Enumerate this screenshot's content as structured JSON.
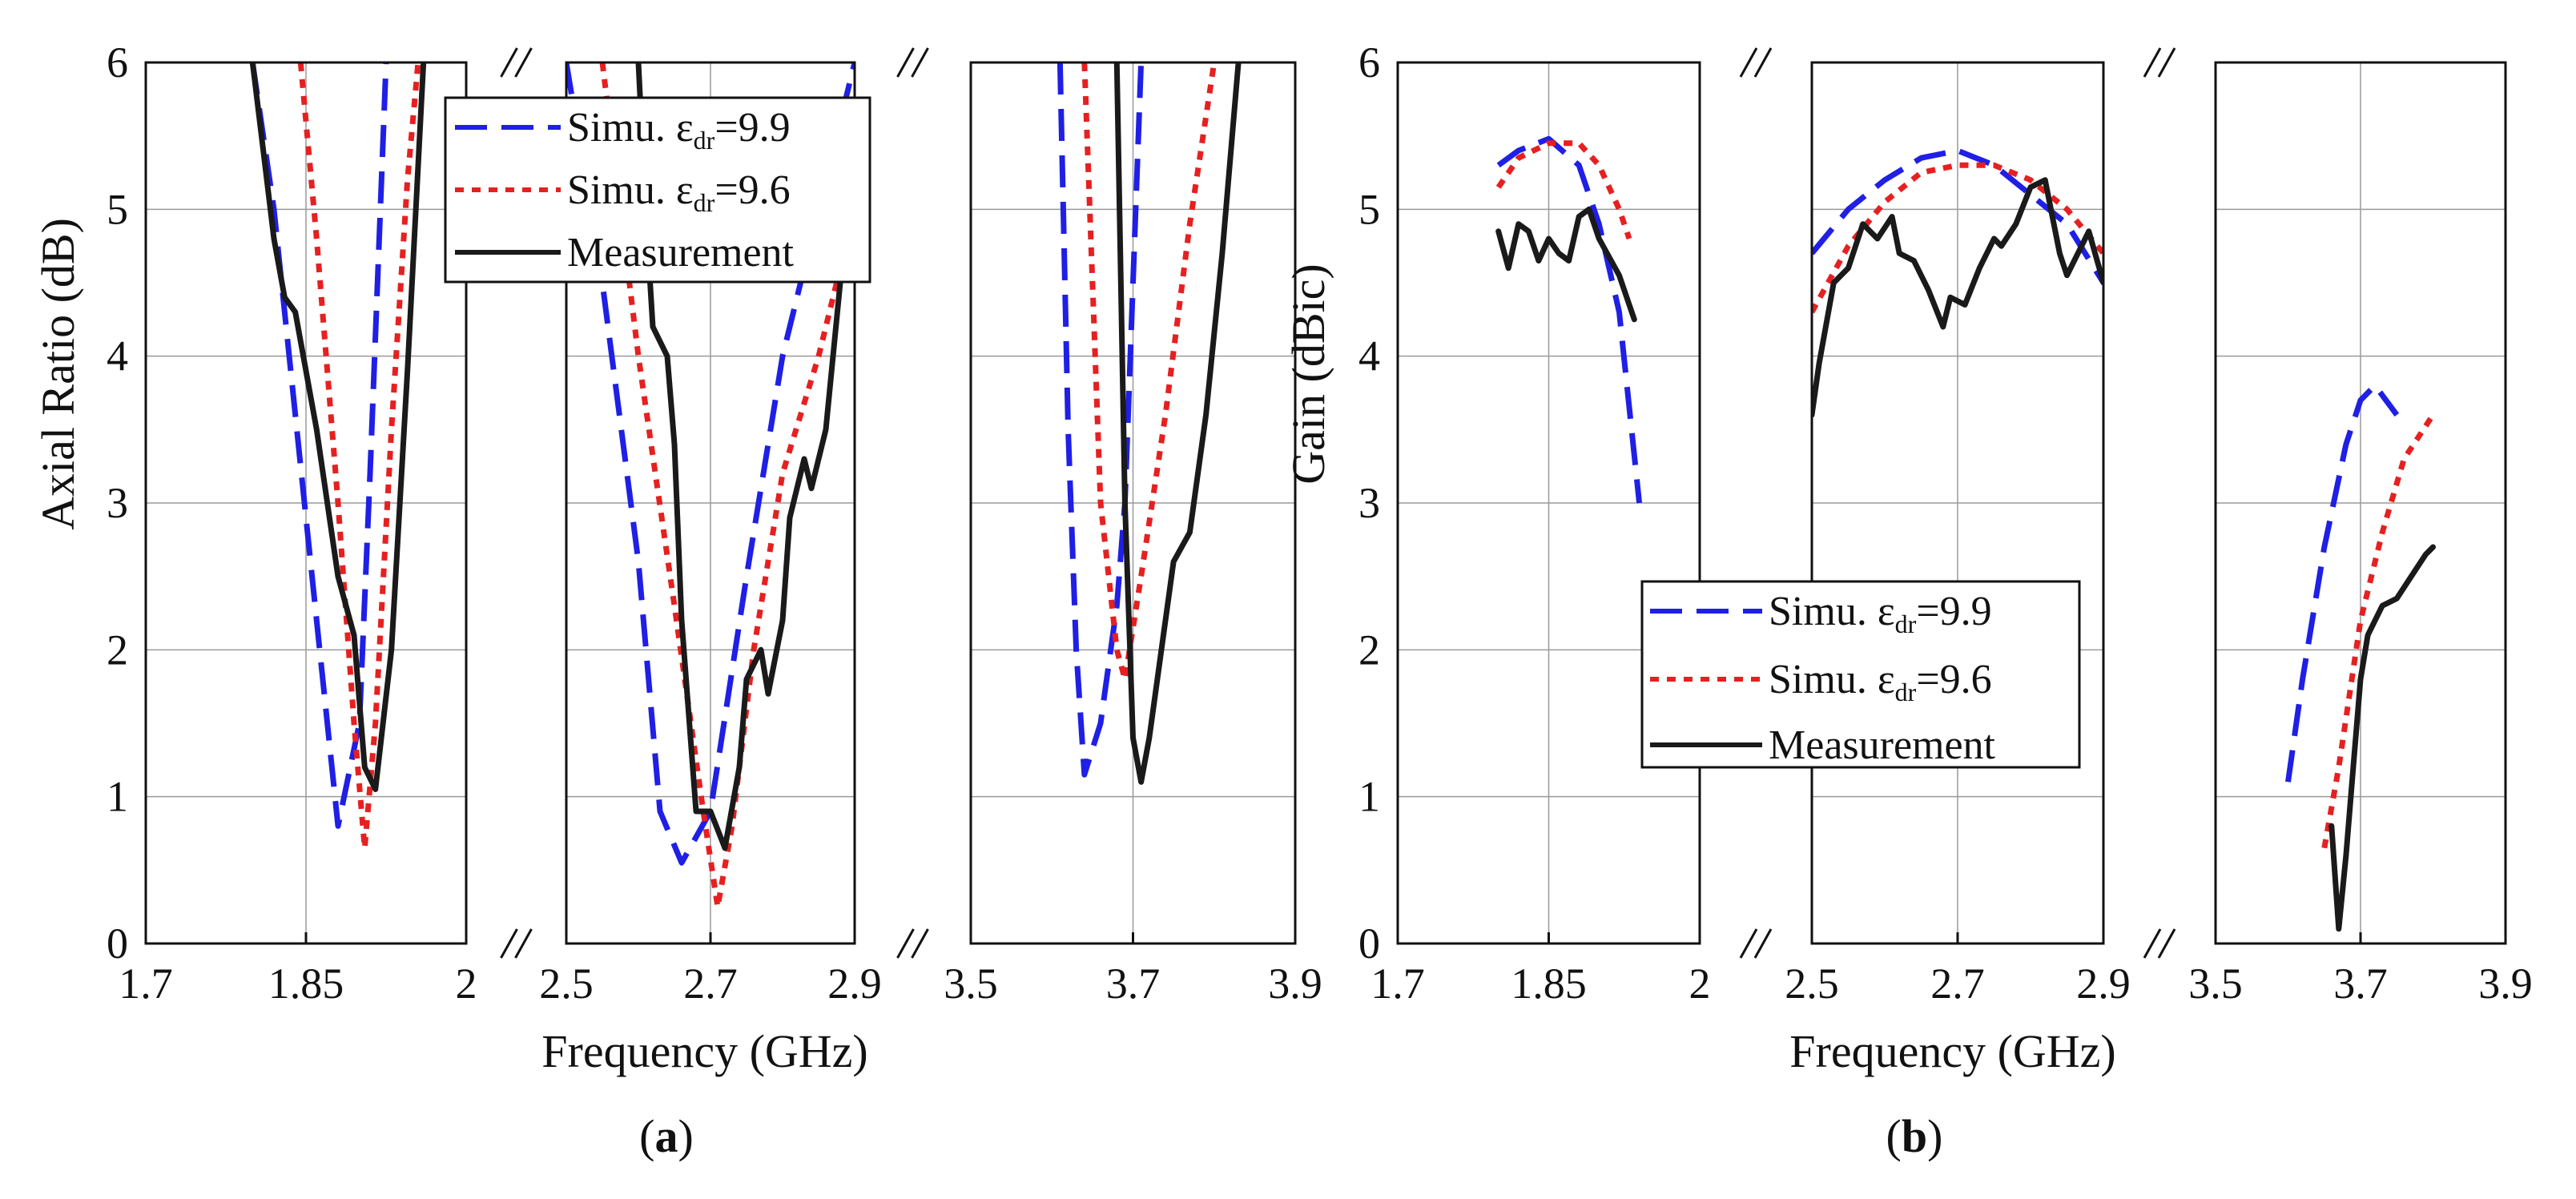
{
  "chart_data": [
    {
      "panel": "a",
      "type": "line",
      "caption": {
        "open": "(",
        "letter": "a",
        "close": ")"
      },
      "xlabel": "Frequency (GHz)",
      "ylabel": "Axial Ratio (dB)",
      "ylim": [
        0,
        6
      ],
      "yticks": [
        "0",
        "1",
        "2",
        "3",
        "4",
        "5",
        "6"
      ],
      "grid": true,
      "legend_position": "top-center",
      "segments": [
        {
          "xlim": [
            1.7,
            2.0
          ],
          "xticks": [
            1.7,
            1.85,
            2.0
          ],
          "xtick_labels": [
            "1.7",
            "1.85",
            "2"
          ]
        },
        {
          "xlim": [
            2.5,
            2.9
          ],
          "xticks": [
            2.5,
            2.7,
            2.9
          ],
          "xtick_labels": [
            "2.5",
            "2.7",
            "2.9"
          ]
        },
        {
          "xlim": [
            3.5,
            3.9
          ],
          "xticks": [
            3.5,
            3.7,
            3.9
          ],
          "xtick_labels": [
            "3.5",
            "3.7",
            "3.9"
          ]
        }
      ],
      "series": [
        {
          "name": "Simu.",
          "legend_prefix": "Simu. ε",
          "legend_sub": "dr",
          "legend_suffix": "=9.9",
          "color": "#1f1fe6",
          "style": "dashed",
          "segments": [
            [
              [
                1.8,
                6.0
              ],
              [
                1.82,
                5.0
              ],
              [
                1.84,
                3.6
              ],
              [
                1.86,
                2.2
              ],
              [
                1.88,
                0.8
              ],
              [
                1.9,
                1.5
              ],
              [
                1.91,
                3.2
              ],
              [
                1.925,
                6.0
              ]
            ],
            [
              [
                2.5,
                6.0
              ],
              [
                2.55,
                4.5
              ],
              [
                2.6,
                2.6
              ],
              [
                2.63,
                0.9
              ],
              [
                2.66,
                0.55
              ],
              [
                2.7,
                0.9
              ],
              [
                2.75,
                2.5
              ],
              [
                2.8,
                4.0
              ],
              [
                2.85,
                5.0
              ],
              [
                2.9,
                6.0
              ]
            ],
            [
              [
                3.61,
                6.0
              ],
              [
                3.62,
                3.5
              ],
              [
                3.63,
                2.0
              ],
              [
                3.64,
                1.15
              ],
              [
                3.66,
                1.5
              ],
              [
                3.68,
                2.3
              ],
              [
                3.69,
                3.0
              ],
              [
                3.71,
                6.0
              ]
            ]
          ]
        },
        {
          "name": "Simu.",
          "legend_prefix": "Simu. ε",
          "legend_sub": "dr",
          "legend_suffix": "=9.6",
          "color": "#e62020",
          "style": "dotted",
          "segments": [
            [
              [
                1.845,
                6.0
              ],
              [
                1.86,
                4.8
              ],
              [
                1.88,
                3.0
              ],
              [
                1.895,
                1.5
              ],
              [
                1.905,
                0.65
              ],
              [
                1.915,
                1.5
              ],
              [
                1.93,
                3.5
              ],
              [
                1.945,
                5.2
              ],
              [
                1.955,
                6.0
              ]
            ],
            [
              [
                2.55,
                6.0
              ],
              [
                2.6,
                4.0
              ],
              [
                2.65,
                2.3
              ],
              [
                2.69,
                0.9
              ],
              [
                2.71,
                0.25
              ],
              [
                2.73,
                0.8
              ],
              [
                2.76,
                2.0
              ],
              [
                2.8,
                3.2
              ],
              [
                2.85,
                4.0
              ],
              [
                2.9,
                5.0
              ]
            ],
            [
              [
                3.64,
                6.0
              ],
              [
                3.65,
                4.5
              ],
              [
                3.66,
                3.0
              ],
              [
                3.68,
                2.0
              ],
              [
                3.69,
                1.8
              ],
              [
                3.71,
                2.5
              ],
              [
                3.74,
                3.6
              ],
              [
                3.77,
                4.9
              ],
              [
                3.8,
                6.0
              ]
            ]
          ]
        },
        {
          "name": "Measurement",
          "legend_prefix": "Measurement",
          "legend_sub": "",
          "legend_suffix": "",
          "color": "#1a1a1a",
          "style": "solid",
          "segments": [
            [
              [
                1.8,
                6.0
              ],
              [
                1.81,
                5.4
              ],
              [
                1.82,
                4.8
              ],
              [
                1.83,
                4.4
              ],
              [
                1.84,
                4.3
              ],
              [
                1.86,
                3.5
              ],
              [
                1.88,
                2.5
              ],
              [
                1.895,
                2.1
              ],
              [
                1.905,
                1.2
              ],
              [
                1.915,
                1.05
              ],
              [
                1.93,
                2.0
              ],
              [
                1.945,
                3.9
              ],
              [
                1.96,
                6.0
              ]
            ],
            [
              [
                2.6,
                6.0
              ],
              [
                2.61,
                5.0
              ],
              [
                2.62,
                4.2
              ],
              [
                2.64,
                4.0
              ],
              [
                2.65,
                3.4
              ],
              [
                2.66,
                2.2
              ],
              [
                2.68,
                0.9
              ],
              [
                2.7,
                0.9
              ],
              [
                2.72,
                0.65
              ],
              [
                2.74,
                1.2
              ],
              [
                2.75,
                1.8
              ],
              [
                2.77,
                2.0
              ],
              [
                2.78,
                1.7
              ],
              [
                2.8,
                2.2
              ],
              [
                2.81,
                2.9
              ],
              [
                2.83,
                3.3
              ],
              [
                2.84,
                3.1
              ],
              [
                2.86,
                3.5
              ],
              [
                2.88,
                4.5
              ],
              [
                2.9,
                5.3
              ]
            ],
            [
              [
                3.68,
                6.0
              ],
              [
                3.69,
                3.0
              ],
              [
                3.7,
                1.4
              ],
              [
                3.71,
                1.1
              ],
              [
                3.72,
                1.4
              ],
              [
                3.73,
                1.8
              ],
              [
                3.75,
                2.6
              ],
              [
                3.77,
                2.8
              ],
              [
                3.79,
                3.6
              ],
              [
                3.81,
                4.7
              ],
              [
                3.83,
                6.0
              ]
            ]
          ]
        }
      ]
    },
    {
      "panel": "b",
      "type": "line",
      "caption": {
        "open": "(",
        "letter": "b",
        "close": ")"
      },
      "xlabel": "Frequency (GHz)",
      "ylabel": "Gain (dBic)",
      "ylim": [
        0,
        6
      ],
      "yticks": [
        "0",
        "1",
        "2",
        "3",
        "4",
        "5",
        "6"
      ],
      "grid": true,
      "legend_position": "center",
      "segments": [
        {
          "xlim": [
            1.7,
            2.0
          ],
          "xticks": [
            1.7,
            1.85,
            2.0
          ],
          "xtick_labels": [
            "1.7",
            "1.85",
            "2"
          ]
        },
        {
          "xlim": [
            2.5,
            2.9
          ],
          "xticks": [
            2.5,
            2.7,
            2.9
          ],
          "xtick_labels": [
            "2.5",
            "2.7",
            "2.9"
          ]
        },
        {
          "xlim": [
            3.5,
            3.9
          ],
          "xticks": [
            3.5,
            3.7,
            3.9
          ],
          "xtick_labels": [
            "3.5",
            "3.7",
            "3.9"
          ]
        }
      ],
      "series": [
        {
          "name": "Simu.",
          "legend_prefix": "Simu. ε",
          "legend_sub": "dr",
          "legend_suffix": "=9.9",
          "color": "#1f1fe6",
          "style": "dashed",
          "segments": [
            [
              [
                1.8,
                5.3
              ],
              [
                1.82,
                5.4
              ],
              [
                1.85,
                5.48
              ],
              [
                1.88,
                5.3
              ],
              [
                1.9,
                4.9
              ],
              [
                1.92,
                4.3
              ],
              [
                1.94,
                3.0
              ]
            ],
            [
              [
                2.5,
                4.7
              ],
              [
                2.55,
                5.0
              ],
              [
                2.6,
                5.2
              ],
              [
                2.65,
                5.35
              ],
              [
                2.7,
                5.4
              ],
              [
                2.75,
                5.3
              ],
              [
                2.8,
                5.1
              ],
              [
                2.85,
                4.9
              ],
              [
                2.9,
                4.5
              ]
            ],
            [
              [
                3.6,
                1.1
              ],
              [
                3.62,
                1.8
              ],
              [
                3.65,
                2.7
              ],
              [
                3.68,
                3.4
              ],
              [
                3.7,
                3.7
              ],
              [
                3.72,
                3.8
              ],
              [
                3.75,
                3.6
              ]
            ]
          ]
        },
        {
          "name": "Simu.",
          "legend_prefix": "Simu. ε",
          "legend_sub": "dr",
          "legend_suffix": "=9.6",
          "color": "#e62020",
          "style": "dotted",
          "segments": [
            [
              [
                1.8,
                5.15
              ],
              [
                1.82,
                5.35
              ],
              [
                1.85,
                5.45
              ],
              [
                1.88,
                5.45
              ],
              [
                1.9,
                5.3
              ],
              [
                1.92,
                5.0
              ],
              [
                1.93,
                4.8
              ]
            ],
            [
              [
                2.5,
                4.3
              ],
              [
                2.55,
                4.75
              ],
              [
                2.6,
                5.05
              ],
              [
                2.65,
                5.25
              ],
              [
                2.7,
                5.3
              ],
              [
                2.75,
                5.3
              ],
              [
                2.8,
                5.2
              ],
              [
                2.85,
                5.0
              ],
              [
                2.9,
                4.7
              ]
            ],
            [
              [
                3.65,
                0.65
              ],
              [
                3.67,
                1.2
              ],
              [
                3.7,
                2.2
              ],
              [
                3.73,
                2.8
              ],
              [
                3.76,
                3.3
              ],
              [
                3.8,
                3.6
              ]
            ]
          ]
        },
        {
          "name": "Measurement",
          "legend_prefix": "Measurement",
          "legend_sub": "",
          "legend_suffix": "",
          "color": "#1a1a1a",
          "style": "solid",
          "segments": [
            [
              [
                1.8,
                4.85
              ],
              [
                1.81,
                4.6
              ],
              [
                1.82,
                4.9
              ],
              [
                1.83,
                4.85
              ],
              [
                1.84,
                4.65
              ],
              [
                1.85,
                4.8
              ],
              [
                1.86,
                4.7
              ],
              [
                1.87,
                4.65
              ],
              [
                1.88,
                4.95
              ],
              [
                1.89,
                5.0
              ],
              [
                1.9,
                4.8
              ],
              [
                1.92,
                4.55
              ],
              [
                1.935,
                4.25
              ]
            ],
            [
              [
                2.5,
                3.6
              ],
              [
                2.51,
                3.95
              ],
              [
                2.53,
                4.5
              ],
              [
                2.55,
                4.6
              ],
              [
                2.57,
                4.9
              ],
              [
                2.59,
                4.8
              ],
              [
                2.61,
                4.95
              ],
              [
                2.62,
                4.7
              ],
              [
                2.64,
                4.65
              ],
              [
                2.66,
                4.45
              ],
              [
                2.68,
                4.2
              ],
              [
                2.69,
                4.4
              ],
              [
                2.71,
                4.35
              ],
              [
                2.73,
                4.6
              ],
              [
                2.75,
                4.8
              ],
              [
                2.76,
                4.75
              ],
              [
                2.78,
                4.9
              ],
              [
                2.8,
                5.15
              ],
              [
                2.82,
                5.2
              ],
              [
                2.84,
                4.7
              ],
              [
                2.85,
                4.55
              ],
              [
                2.87,
                4.75
              ],
              [
                2.88,
                4.85
              ],
              [
                2.9,
                4.5
              ]
            ],
            [
              [
                3.66,
                0.8
              ],
              [
                3.67,
                0.1
              ],
              [
                3.68,
                0.6
              ],
              [
                3.69,
                1.2
              ],
              [
                3.7,
                1.8
              ],
              [
                3.71,
                2.1
              ],
              [
                3.72,
                2.2
              ],
              [
                3.73,
                2.3
              ],
              [
                3.75,
                2.35
              ],
              [
                3.77,
                2.5
              ],
              [
                3.79,
                2.65
              ],
              [
                3.8,
                2.7
              ]
            ]
          ]
        }
      ]
    }
  ]
}
